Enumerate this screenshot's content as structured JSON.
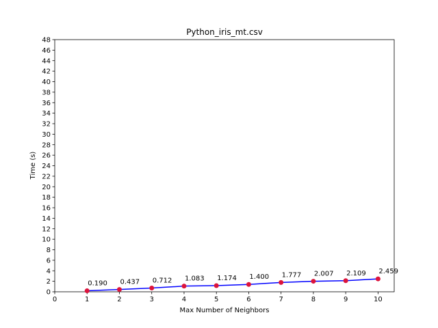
{
  "chart_data": {
    "type": "line",
    "title": "Python_iris_mt.csv",
    "xlabel": "Max Number of Neighbors",
    "ylabel": "Time (s)",
    "xlim": [
      0,
      10.5
    ],
    "ylim": [
      0,
      48
    ],
    "x_ticks": [
      0,
      1,
      2,
      3,
      4,
      5,
      6,
      7,
      8,
      9,
      10
    ],
    "y_ticks": [
      0,
      2,
      4,
      6,
      8,
      10,
      12,
      14,
      16,
      18,
      20,
      22,
      24,
      26,
      28,
      30,
      32,
      34,
      36,
      38,
      40,
      42,
      44,
      46,
      48
    ],
    "grid": false,
    "line_color": "#0000ff",
    "marker_color": "#dc143c",
    "series": [
      {
        "x": [
          1,
          2,
          3,
          4,
          5,
          6,
          7,
          8,
          9,
          10
        ],
        "values": [
          0.19,
          0.437,
          0.712,
          1.083,
          1.174,
          1.4,
          1.777,
          2.007,
          2.109,
          2.459
        ],
        "labels": [
          "0.190",
          "0.437",
          "0.712",
          "1.083",
          "1.174",
          "1.400",
          "1.777",
          "2.007",
          "2.109",
          "2.459"
        ]
      }
    ]
  }
}
